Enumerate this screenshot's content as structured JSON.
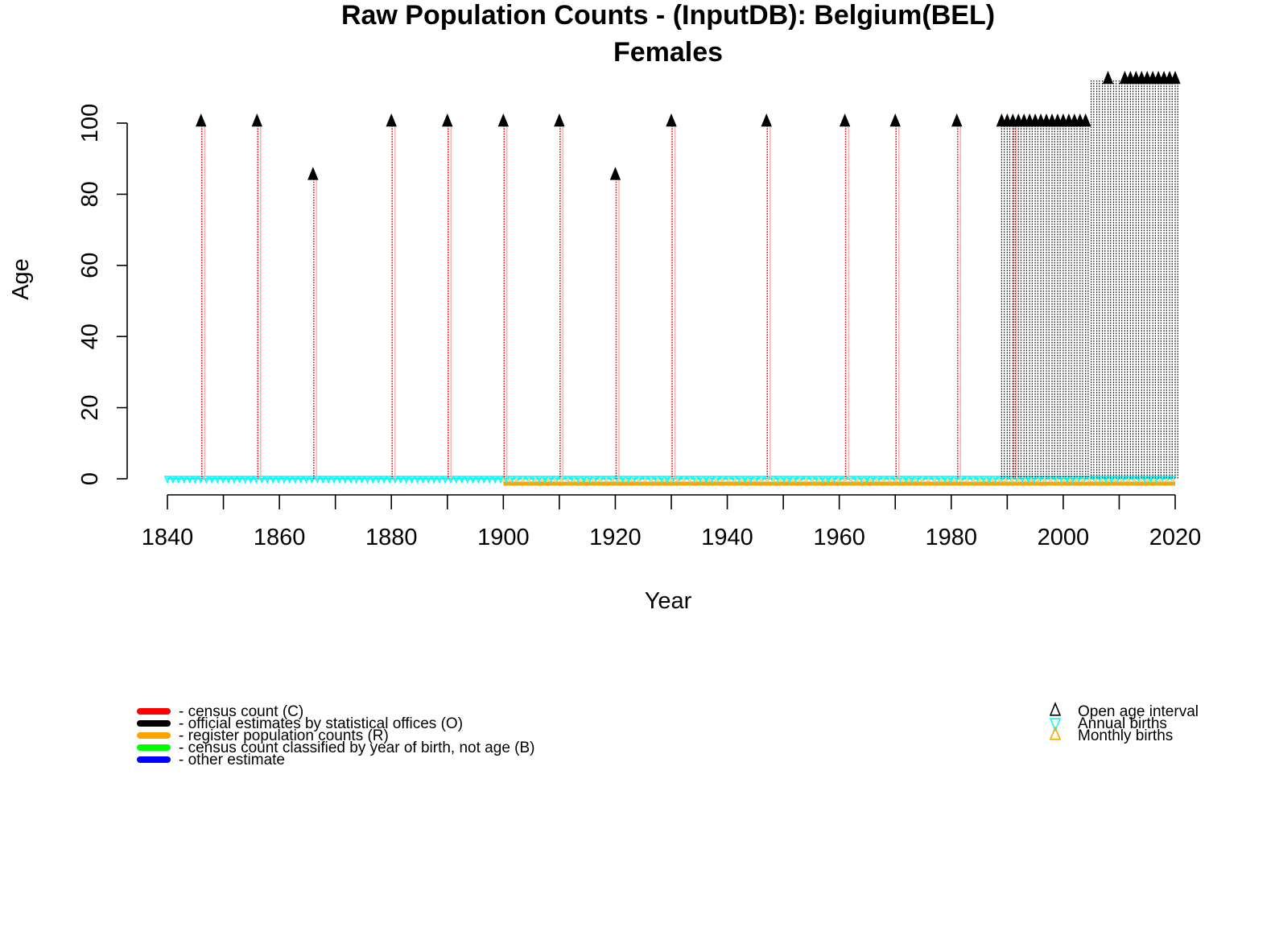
{
  "chart_data": {
    "type": "scatter",
    "title": "Raw Population Counts - (InputDB): Belgium(BEL)",
    "subtitle": "Females",
    "xlabel": "Year",
    "ylabel": "Age",
    "xlim": [
      1840,
      2020
    ],
    "ylim": [
      0,
      112
    ],
    "xticks": [
      1840,
      1860,
      1880,
      1900,
      1920,
      1940,
      1960,
      1980,
      2000,
      2020
    ],
    "yticks": [
      0,
      20,
      40,
      60,
      80,
      100
    ],
    "xticks_minor": [
      1850,
      1870,
      1890,
      1910,
      1930,
      1950,
      1970,
      1990,
      2010
    ],
    "colors": {
      "census": "#ff0000",
      "census_light": "#ffb0b0",
      "official": "#000000",
      "register": "#ffa500",
      "births_annual": "#00ffff",
      "births_monthly": "#ffa500",
      "cohort": "#00ff00",
      "other": "#0000ff"
    },
    "series": [
      {
        "name": "census count (C)",
        "code": "C",
        "years": [
          1846,
          1856,
          1866,
          1880,
          1890,
          1900,
          1910,
          1920,
          1930,
          1947,
          1961,
          1970,
          1981,
          1991
        ],
        "open_age": [
          100,
          100,
          85,
          100,
          100,
          100,
          100,
          85,
          100,
          100,
          100,
          100,
          100,
          100
        ]
      },
      {
        "name": "official estimates by statistical offices (O)",
        "code": "O",
        "years": [
          1989,
          1990,
          1991,
          1992,
          1993,
          1994,
          1995,
          1996,
          1997,
          1998,
          1999,
          2000,
          2001,
          2002,
          2003,
          2004,
          2005,
          2006,
          2007,
          2008,
          2009,
          2010,
          2011,
          2012,
          2013,
          2014,
          2015,
          2016,
          2017,
          2018,
          2019,
          2020
        ],
        "open_age": [
          100,
          100,
          100,
          100,
          100,
          100,
          100,
          100,
          100,
          100,
          100,
          100,
          100,
          100,
          100,
          100,
          112,
          112,
          112,
          112,
          112,
          112,
          112,
          112,
          112,
          112,
          112,
          112,
          112,
          112,
          112,
          112
        ],
        "open_marker_years": [
          1989,
          1990,
          1991,
          1992,
          1993,
          1994,
          1995,
          1996,
          1997,
          1998,
          1999,
          2000,
          2001,
          2002,
          2003,
          2004,
          2008,
          2011,
          2012,
          2013,
          2014,
          2015,
          2016,
          2017,
          2018,
          2019,
          2020
        ]
      },
      {
        "name": "register population counts (R)",
        "code": "R",
        "range": [
          1900,
          2020
        ],
        "age": -1
      },
      {
        "name": "Annual births",
        "range": [
          1840,
          2020
        ],
        "age": 0
      },
      {
        "name": "Monthly births",
        "range": [
          1900,
          2020
        ],
        "age": 0
      }
    ],
    "legend_left": [
      {
        "label": "- census count (C)",
        "color": "#ff0000"
      },
      {
        "label": "- official estimates by statistical offices (O)",
        "color": "#000000"
      },
      {
        "label": "- register population counts (R)",
        "color": "#ffa500"
      },
      {
        "label": "- census count classified by year of birth, not age (B)",
        "color": "#00ff00"
      },
      {
        "label": "- other estimate",
        "color": "#0000ff"
      }
    ],
    "legend_right": [
      {
        "label": "Open age interval",
        "symbol": "triangle-up",
        "color": "#000000"
      },
      {
        "label": "Annual births",
        "symbol": "triangle-down",
        "color": "#00ffff"
      },
      {
        "label": "Monthly births",
        "symbol": "triangle-up",
        "color": "#ffa500"
      }
    ],
    "legend_placement": [
      "bottom-left",
      "bottom-right"
    ]
  }
}
